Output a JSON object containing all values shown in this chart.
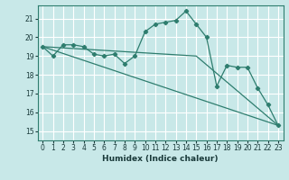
{
  "title": "",
  "xlabel": "Humidex (Indice chaleur)",
  "ylabel": "",
  "background_color": "#c8e8e8",
  "grid_color": "#e8f8f8",
  "line_color": "#2e7d6e",
  "x_ticks": [
    0,
    1,
    2,
    3,
    4,
    5,
    6,
    7,
    8,
    9,
    10,
    11,
    12,
    13,
    14,
    15,
    16,
    17,
    18,
    19,
    20,
    21,
    22,
    23
  ],
  "ylim": [
    14.5,
    21.7
  ],
  "xlim": [
    -0.5,
    23.5
  ],
  "y_ticks": [
    15,
    16,
    17,
    18,
    19,
    20,
    21
  ],
  "series1_x": [
    0,
    1,
    2,
    3,
    4,
    5,
    6,
    7,
    8,
    9,
    10,
    11,
    12,
    13,
    14,
    15,
    16,
    17,
    18,
    19,
    20,
    21,
    22,
    23
  ],
  "series1_y": [
    19.5,
    19.0,
    19.6,
    19.6,
    19.5,
    19.1,
    19.0,
    19.1,
    18.6,
    19.0,
    20.3,
    20.7,
    20.8,
    20.9,
    21.4,
    20.7,
    20.0,
    17.4,
    18.5,
    18.4,
    18.4,
    17.3,
    16.4,
    15.3
  ],
  "series2_x": [
    0,
    23
  ],
  "series2_y": [
    19.5,
    15.3
  ],
  "series3_x": [
    0,
    15,
    23
  ],
  "series3_y": [
    19.5,
    19.0,
    15.3
  ]
}
